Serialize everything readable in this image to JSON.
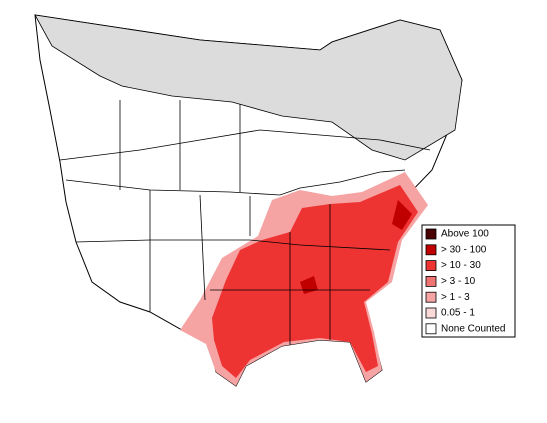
{
  "legend": {
    "items": [
      {
        "label": "Above 100",
        "color": "#4a0000"
      },
      {
        "label": "> 30 - 100",
        "color": "#c00000"
      },
      {
        "label": "> 10 - 30",
        "color": "#ee3333"
      },
      {
        "label": "> 3 - 10",
        "color": "#f07373"
      },
      {
        "label": "> 1 - 3",
        "color": "#f5a3a3"
      },
      {
        "label": "0.05 - 1",
        "color": "#fbd9d9"
      },
      {
        "label": "None Counted",
        "color": "#ffffff"
      }
    ]
  }
}
